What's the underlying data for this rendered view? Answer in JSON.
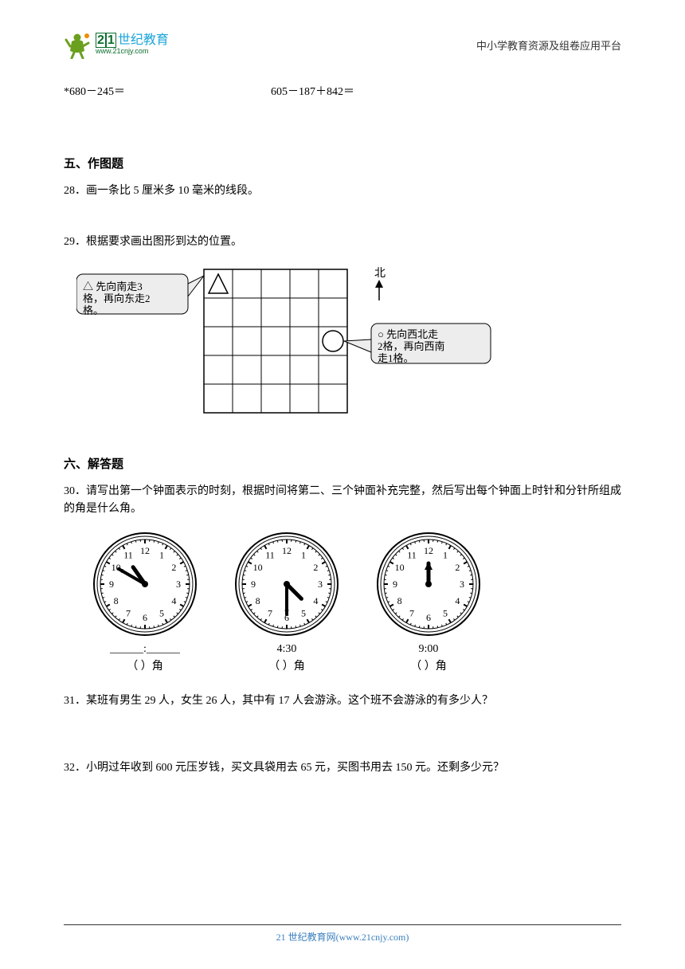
{
  "header": {
    "logo_cn": "21世纪教育",
    "logo_url": "www.21cnjy.com",
    "right": "中小学教育资源及组卷应用平台",
    "logo_colors": {
      "figure": "#6aa01e",
      "cn": "#1aa4d9",
      "box": "#0d6e2e"
    }
  },
  "equations": {
    "eq1": "*680－245＝",
    "eq2": "605－187＋842＝"
  },
  "section5": {
    "title": "五、作图题",
    "q28": "28．画一条比 5 厘米多 10 毫米的线段。",
    "q29": "29．根据要求画出图形到达的位置。"
  },
  "diagram29": {
    "grid": {
      "cols": 5,
      "rows": 5,
      "cell": 36,
      "stroke": "#000000"
    },
    "triangle_cell": {
      "col": 0,
      "row": 0
    },
    "circle_cell": {
      "col": 4,
      "row": 2
    },
    "north_label": "北",
    "bubble_left": "△ 先向南走3格，再向东走2格。",
    "bubble_right": "○ 先向西北走2格，再向西南走1格。",
    "bubble_style": {
      "fill": "#ededed",
      "stroke": "#000000",
      "radius": 8,
      "fontsize": 13
    }
  },
  "section6": {
    "title": "六、解答题",
    "q30": "30．请写出第一个钟面表示的时刻，根据时间将第二、三个钟面补充完整，然后写出每个钟面上时针和分针所组成的角是什么角。",
    "q31": "31．某班有男生 29 人，女生 26 人，其中有 17 人会游泳。这个班不会游泳的有多少人？",
    "q32": "32．小明过年收到 600 元压岁钱，买文具袋用去 65 元，买图书用去 150 元。还剩多少元？"
  },
  "clocks": [
    {
      "hour": 10.83,
      "minute": 50,
      "time_label": "______:______",
      "angle_label": "（        ）角",
      "show_hands": true
    },
    {
      "hour": 4.5,
      "minute": 30,
      "time_label": "4:30",
      "angle_label": "（        ）角",
      "show_hands": true
    },
    {
      "hour": 9.0,
      "minute": 0,
      "time_label": "9:00",
      "angle_label": "（        ）角",
      "show_hands": false
    }
  ],
  "clock_style": {
    "outer_r": 64,
    "face_r": 56,
    "tick_major": 5,
    "tick_minor": 2.5,
    "num_r": 42,
    "num_fontsize": 12,
    "hour_len": 26,
    "minute_len": 38,
    "hand_width": 4,
    "colors": {
      "stroke": "#000000",
      "face": "#ffffff"
    }
  },
  "footer": "21 世纪教育网(www.21cnjy.com)"
}
